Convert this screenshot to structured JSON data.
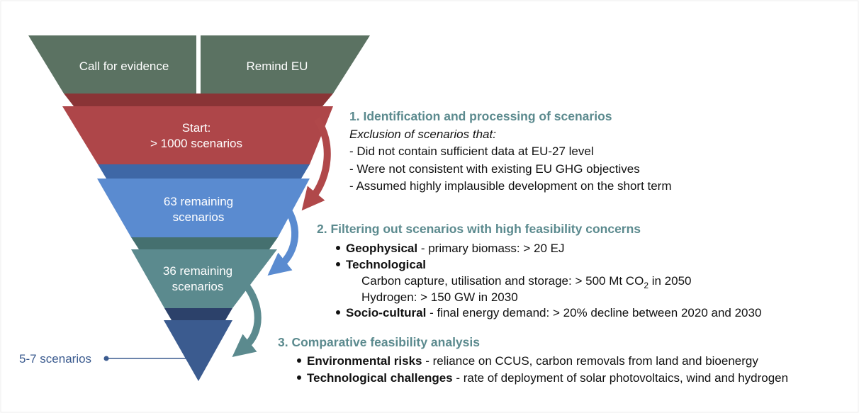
{
  "funnel": {
    "top": [
      "Call for evidence",
      "Remind EU"
    ],
    "stages": [
      {
        "lines": [
          "Start:",
          "> 1000 scenarios"
        ]
      },
      {
        "lines": [
          "63 remaining",
          "scenarios"
        ]
      },
      {
        "lines": [
          "36 remaining",
          "scenarios"
        ]
      }
    ],
    "result": "5-7 scenarios"
  },
  "steps": [
    {
      "title": "1. Identification and processing of scenarios",
      "intro": "Exclusion of scenarios that:",
      "items": [
        "- Did not contain sufficient data at EU-27 level",
        "- Were not consistent with existing EU GHG objectives",
        "- Assumed highly implausible development on the short term"
      ]
    },
    {
      "title": "2. Filtering out scenarios with high feasibility concerns",
      "items": [
        {
          "bold": "Geophysical",
          "text": " - primary biomass: > 20 EJ"
        },
        {
          "bold": "Technological",
          "sublines": [
            {
              "text": "Carbon capture, utilisation and storage: > 500 Mt CO",
              "sub": "2",
              "after": " in 2050"
            },
            {
              "text": "Hydrogen: > 150 GW in 2030"
            }
          ]
        },
        {
          "bold": "Socio-cultural",
          "text": " - final energy demand: > 20% decline between 2020 and 2030"
        }
      ]
    },
    {
      "title": "3. Comparative feasibility analysis",
      "items": [
        {
          "bold": "Environmental risks",
          "text": " - reliance on CCUS, carbon removals from land and bioenergy"
        },
        {
          "bold": "Technological challenges",
          "text": " - rate of deployment of solar photovoltaics, wind and hydrogen"
        }
      ]
    }
  ]
}
